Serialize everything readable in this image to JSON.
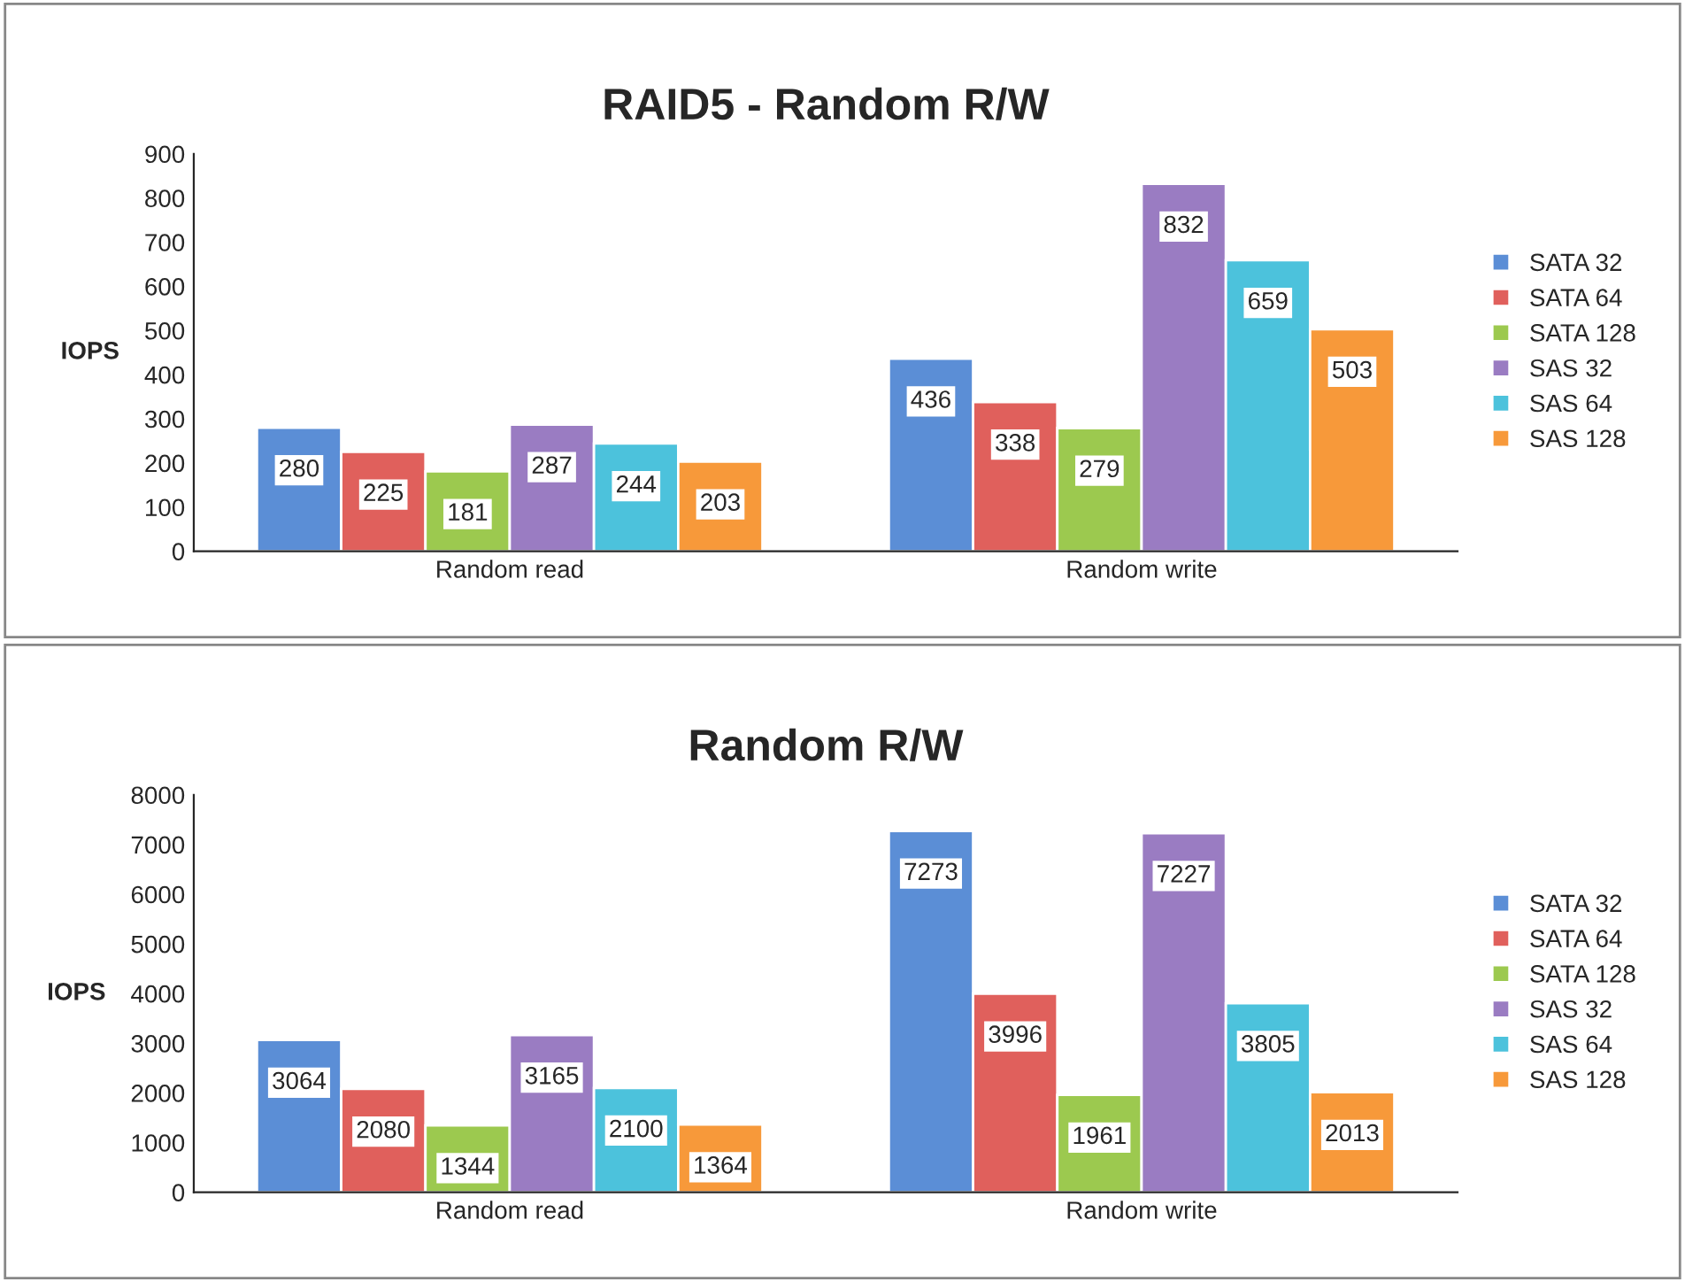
{
  "chart_data": [
    {
      "type": "bar",
      "title": "RAID5 - Random R/W",
      "ylabel": "IOPS",
      "categories": [
        "Random read",
        "Random write"
      ],
      "series": [
        {
          "name": "SATA 32",
          "color": "#5b8ed6",
          "values": [
            280,
            436
          ]
        },
        {
          "name": "SATA 64",
          "color": "#e0605c",
          "values": [
            225,
            338
          ]
        },
        {
          "name": "SATA 128",
          "color": "#9cc94f",
          "values": [
            181,
            279
          ]
        },
        {
          "name": "SAS 32",
          "color": "#9a7cc2",
          "values": [
            287,
            832
          ]
        },
        {
          "name": "SAS 64",
          "color": "#4cc2dc",
          "values": [
            244,
            659
          ]
        },
        {
          "name": "SAS 128",
          "color": "#f7993a",
          "values": [
            203,
            503
          ]
        }
      ],
      "ylim": [
        0,
        900
      ],
      "yticks": [
        0,
        100,
        200,
        300,
        400,
        500,
        600,
        700,
        800,
        900
      ],
      "grid": false,
      "legend": "right",
      "data_labels": true
    },
    {
      "type": "bar",
      "title": "Random R/W",
      "ylabel": "IOPS",
      "categories": [
        "Random read",
        "Random write"
      ],
      "series": [
        {
          "name": "SATA 32",
          "color": "#5b8ed6",
          "values": [
            3064,
            7273
          ]
        },
        {
          "name": "SATA 64",
          "color": "#e0605c",
          "values": [
            2080,
            3996
          ]
        },
        {
          "name": "SATA 128",
          "color": "#9cc94f",
          "values": [
            1344,
            1961
          ]
        },
        {
          "name": "SAS 32",
          "color": "#9a7cc2",
          "values": [
            3165,
            7227
          ]
        },
        {
          "name": "SAS 64",
          "color": "#4cc2dc",
          "values": [
            2100,
            3805
          ]
        },
        {
          "name": "SAS 128",
          "color": "#f7993a",
          "values": [
            1364,
            2013
          ]
        }
      ],
      "ylim": [
        0,
        8000
      ],
      "yticks": [
        0,
        1000,
        2000,
        3000,
        4000,
        5000,
        6000,
        7000,
        8000
      ],
      "grid": false,
      "legend": "right",
      "data_labels": true
    }
  ]
}
